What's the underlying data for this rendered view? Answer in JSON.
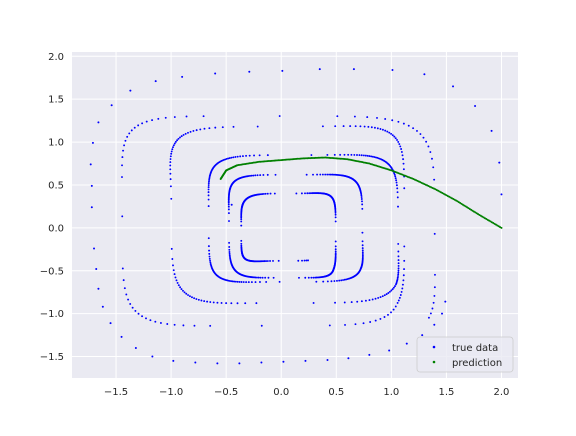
{
  "chart_data": {
    "type": "scatter",
    "title": "",
    "xlabel": "",
    "ylabel": "",
    "xlim": [
      -1.9,
      2.15
    ],
    "ylim": [
      -1.75,
      2.05
    ],
    "xticks": [
      -1.5,
      -1.0,
      -0.5,
      0.0,
      0.5,
      1.0,
      1.5,
      2.0
    ],
    "xtick_labels": [
      "−1.5",
      "−1.0",
      "−0.5",
      "0.0",
      "0.5",
      "1.0",
      "1.5",
      "2.0"
    ],
    "yticks": [
      -1.5,
      -1.0,
      -0.5,
      0.0,
      0.5,
      1.0,
      1.5,
      2.0
    ],
    "ytick_labels": [
      "−1.5",
      "−1.0",
      "−0.5",
      "0.0",
      "0.5",
      "1.0",
      "1.5",
      "2.0"
    ],
    "grid": true,
    "style": "seaborn-darkgrid",
    "legend_position": "lower right",
    "series": [
      {
        "name": "true data",
        "color": "#0000ff",
        "marker": "dot",
        "description": "inward spiral of points, spacing decreasing toward center",
        "points": [
          [
            2.0,
            0.39
          ],
          [
            1.98,
            0.76
          ],
          [
            1.91,
            1.13
          ],
          [
            1.76,
            1.42
          ],
          [
            1.56,
            1.65
          ],
          [
            1.3,
            1.79
          ],
          [
            1.01,
            1.84
          ],
          [
            0.66,
            1.85
          ],
          [
            0.35,
            1.85
          ],
          [
            0.01,
            1.83
          ],
          [
            -0.29,
            1.82
          ],
          [
            -0.6,
            1.8
          ],
          [
            -0.9,
            1.76
          ],
          [
            -1.14,
            1.71
          ],
          [
            -1.37,
            1.6
          ],
          [
            -1.54,
            1.43
          ],
          [
            -1.66,
            1.23
          ],
          [
            -1.71,
            0.99
          ],
          [
            -1.73,
            0.74
          ],
          [
            -1.72,
            0.49
          ],
          [
            -1.72,
            0.24
          ],
          [
            -1.7,
            -0.24
          ],
          [
            -1.68,
            -0.48
          ],
          [
            -1.66,
            -0.71
          ],
          [
            -1.62,
            -0.92
          ],
          [
            -1.55,
            -1.11
          ],
          [
            -1.45,
            -1.27
          ],
          [
            -1.32,
            -1.4
          ],
          [
            -1.17,
            -1.5
          ],
          [
            -0.98,
            -1.55
          ],
          [
            -0.78,
            -1.57
          ],
          [
            -0.58,
            -1.58
          ],
          [
            -0.38,
            -1.58
          ],
          [
            -0.18,
            -1.57
          ],
          [
            0.02,
            -1.56
          ],
          [
            0.22,
            -1.55
          ],
          [
            0.42,
            -1.54
          ],
          [
            0.61,
            -1.52
          ],
          [
            0.8,
            -1.48
          ],
          [
            0.98,
            -1.43
          ],
          [
            1.14,
            -1.35
          ],
          [
            1.28,
            -1.25
          ],
          [
            1.39,
            -1.13
          ],
          [
            1.46,
            -1.0
          ],
          [
            1.49,
            -0.86
          ]
        ],
        "spiral_turns": [
          {
            "x_half": 1.52,
            "y_center": 0.0,
            "y_half": 1.3,
            "x_center": -0.1
          },
          {
            "x_half": 1.22,
            "y_center": 0.1,
            "y_half": 1.21,
            "x_center": -0.1
          },
          {
            "x_half": 0.93,
            "y_center": 0.05,
            "y_half": 0.88,
            "x_center": 0.16
          },
          {
            "x_half": 0.67,
            "y_center": 0.05,
            "y_half": 0.64,
            "x_center": 0.09
          },
          {
            "x_half": 0.45,
            "y_center": -0.05,
            "y_half": 0.53,
            "x_center": 0.05
          }
        ],
        "end_point": [
          -0.45,
          0.27
        ]
      },
      {
        "name": "prediction",
        "color": "#008000",
        "marker": "dot",
        "description": "path from (2.0, 0.0) up-left curving to (-0.55, 0.57)",
        "points": [
          [
            2.0,
            0.0
          ],
          [
            1.8,
            0.15
          ],
          [
            1.6,
            0.31
          ],
          [
            1.4,
            0.45
          ],
          [
            1.2,
            0.57
          ],
          [
            1.0,
            0.67
          ],
          [
            0.8,
            0.75
          ],
          [
            0.6,
            0.8
          ],
          [
            0.4,
            0.82
          ],
          [
            0.2,
            0.81
          ],
          [
            0.0,
            0.79
          ],
          [
            -0.2,
            0.77
          ],
          [
            -0.4,
            0.73
          ],
          [
            -0.5,
            0.67
          ],
          [
            -0.55,
            0.57
          ]
        ]
      }
    ],
    "legend": [
      "true data",
      "prediction"
    ]
  }
}
